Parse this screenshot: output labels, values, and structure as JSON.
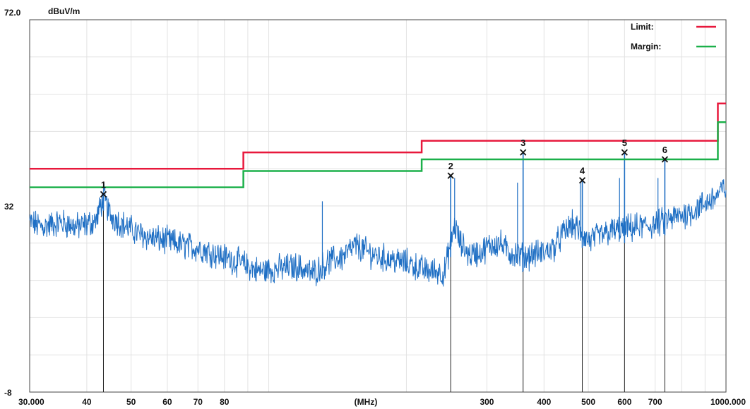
{
  "chart_data": {
    "type": "line",
    "ylabel": "dBuV/m",
    "xlabel": "(MHz)",
    "x_scale": "log",
    "xlim": [
      30,
      1000
    ],
    "ylim": [
      -8,
      72
    ],
    "y_ticks": [
      {
        "value": 72,
        "label": "72.0"
      },
      {
        "value": 32,
        "label": "32"
      },
      {
        "value": -8,
        "label": "-8"
      }
    ],
    "x_ticks": [
      {
        "value": 30,
        "label": "30.000"
      },
      {
        "value": 40,
        "label": "40"
      },
      {
        "value": 50,
        "label": "50"
      },
      {
        "value": 60,
        "label": "60"
      },
      {
        "value": 70,
        "label": "70"
      },
      {
        "value": 80,
        "label": "80"
      },
      {
        "value": 300,
        "label": "300"
      },
      {
        "value": 400,
        "label": "400"
      },
      {
        "value": 500,
        "label": "500"
      },
      {
        "value": 600,
        "label": "600"
      },
      {
        "value": 700,
        "label": "700"
      },
      {
        "value": 1000,
        "label": "1000.000"
      }
    ],
    "grid": true,
    "legend": {
      "placement": "top-right",
      "entries": [
        {
          "label": "Limit:",
          "color": "#e8183c"
        },
        {
          "label": "Margin:",
          "color": "#1cb04a"
        }
      ]
    },
    "series": [
      {
        "name": "Limit:",
        "color": "#e8183c",
        "step": true,
        "points": [
          [
            30,
            40
          ],
          [
            88,
            40
          ],
          [
            88,
            43.5
          ],
          [
            216,
            43.5
          ],
          [
            216,
            46
          ],
          [
            960,
            46
          ],
          [
            960,
            54
          ],
          [
            1000,
            54
          ]
        ]
      },
      {
        "name": "Margin:",
        "color": "#1cb04a",
        "step": true,
        "points": [
          [
            30,
            36
          ],
          [
            88,
            36
          ],
          [
            88,
            39.5
          ],
          [
            216,
            39.5
          ],
          [
            216,
            42
          ],
          [
            960,
            42
          ],
          [
            960,
            50
          ],
          [
            1000,
            50
          ]
        ]
      },
      {
        "color": "#1f6fc4",
        "trace": true,
        "points": [
          [
            30,
            28.5
          ],
          [
            32,
            27.5
          ],
          [
            35,
            28.5
          ],
          [
            38,
            27.5
          ],
          [
            40,
            28
          ],
          [
            42,
            29
          ],
          [
            43.5,
            34
          ],
          [
            45,
            30
          ],
          [
            48,
            28
          ],
          [
            52,
            26
          ],
          [
            56,
            25
          ],
          [
            60,
            24.5
          ],
          [
            65,
            23.5
          ],
          [
            70,
            23
          ],
          [
            75,
            22
          ],
          [
            80,
            21
          ],
          [
            88,
            19.5
          ],
          [
            95,
            18
          ],
          [
            105,
            18.5
          ],
          [
            115,
            19
          ],
          [
            125,
            17.5
          ],
          [
            135,
            20
          ],
          [
            145,
            21
          ],
          [
            155,
            23.5
          ],
          [
            165,
            22
          ],
          [
            175,
            21
          ],
          [
            185,
            20.5
          ],
          [
            195,
            20
          ],
          [
            205,
            19.5
          ],
          [
            215,
            18.5
          ],
          [
            225,
            18
          ],
          [
            235,
            18
          ],
          [
            242,
            17.5
          ],
          [
            250,
            24
          ],
          [
            255,
            28
          ],
          [
            262,
            24
          ],
          [
            275,
            21.5
          ],
          [
            290,
            22
          ],
          [
            305,
            23.5
          ],
          [
            320,
            24
          ],
          [
            335,
            22
          ],
          [
            350,
            21.5
          ],
          [
            360,
            21
          ],
          [
            375,
            21.5
          ],
          [
            400,
            22
          ],
          [
            420,
            23
          ],
          [
            440,
            26
          ],
          [
            460,
            28
          ],
          [
            480,
            26.5
          ],
          [
            500,
            24.5
          ],
          [
            530,
            25.5
          ],
          [
            560,
            26.5
          ],
          [
            600,
            27
          ],
          [
            650,
            27.5
          ],
          [
            700,
            28
          ],
          [
            750,
            29
          ],
          [
            800,
            30
          ],
          [
            850,
            31
          ],
          [
            900,
            32.5
          ],
          [
            950,
            34
          ],
          [
            1000,
            36
          ]
        ]
      }
    ],
    "spikes": [
      [
        131,
        33
      ],
      [
        255,
        38
      ],
      [
        350,
        37
      ],
      [
        480,
        37
      ],
      [
        585,
        38
      ],
      [
        710,
        38
      ]
    ],
    "markers": [
      {
        "label": "1",
        "x": 43.5,
        "y": 34.5
      },
      {
        "label": "2",
        "x": 250,
        "y": 38.5
      },
      {
        "label": "3",
        "x": 360,
        "y": 43.5
      },
      {
        "label": "4",
        "x": 485,
        "y": 37.5
      },
      {
        "label": "5",
        "x": 600,
        "y": 43.5
      },
      {
        "label": "6",
        "x": 735,
        "y": 42
      }
    ]
  }
}
